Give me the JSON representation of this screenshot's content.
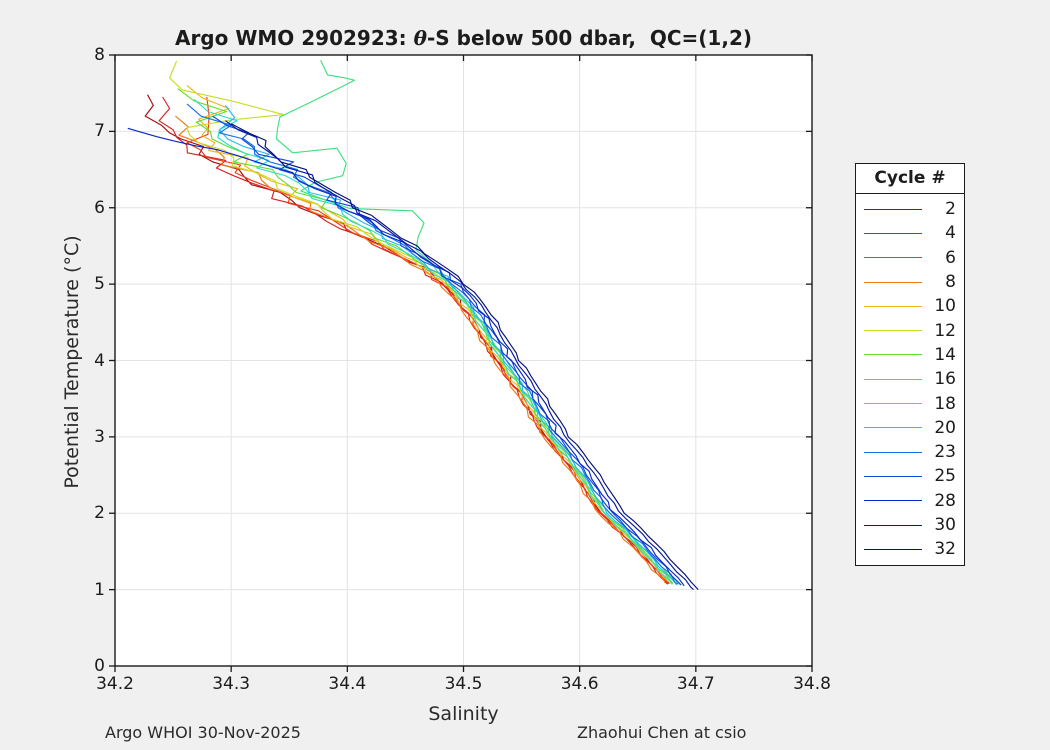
{
  "figure": {
    "bg": "#f0f0f0",
    "plot_bg": "#ffffff",
    "border_color": "#1a1a1a",
    "grid_color": "#e3e3e3",
    "text_color": "#1c1c1c"
  },
  "title": {
    "prefix": "Argo WMO 2902923: ",
    "theta": "θ",
    "suffix": "-S below 500 dbar,  QC=(1,2)"
  },
  "footer": {
    "left": "Argo WHOI 30-Nov-2025",
    "right": "Zhaohui Chen at csio"
  },
  "legend": {
    "title": "Cycle #"
  },
  "chart_data": {
    "type": "line",
    "title": "Argo WMO 2902923: θ-S below 500 dbar, QC=(1,2)",
    "xlabel": "Salinity",
    "ylabel": "Potential Temperature (°C)",
    "xlim": [
      34.2,
      34.8
    ],
    "ylim": [
      0,
      8
    ],
    "x_ticks": [
      "34.2",
      "34.3",
      "34.4",
      "34.5",
      "34.6",
      "34.7",
      "34.8"
    ],
    "y_ticks": [
      "0",
      "1",
      "2",
      "3",
      "4",
      "5",
      "6",
      "7",
      "8"
    ],
    "grid": true,
    "legend_position": "right-outside",
    "baseline": [
      [
        7.4,
        34.262
      ],
      [
        7.2,
        34.272
      ],
      [
        7.0,
        34.29
      ],
      [
        6.8,
        34.312
      ],
      [
        6.6,
        34.332
      ],
      [
        6.4,
        34.355
      ],
      [
        6.2,
        34.375
      ],
      [
        6.0,
        34.395
      ],
      [
        5.8,
        34.415
      ],
      [
        5.6,
        34.435
      ],
      [
        5.4,
        34.455
      ],
      [
        5.2,
        34.474
      ],
      [
        5.0,
        34.49
      ],
      [
        4.8,
        34.502
      ],
      [
        4.6,
        34.512
      ],
      [
        4.4,
        34.52
      ],
      [
        4.2,
        34.528
      ],
      [
        4.0,
        34.536
      ],
      [
        3.8,
        34.545
      ],
      [
        3.6,
        34.554
      ],
      [
        3.4,
        34.562
      ],
      [
        3.2,
        34.57
      ],
      [
        3.0,
        34.578
      ],
      [
        2.8,
        34.589
      ],
      [
        2.6,
        34.599
      ],
      [
        2.4,
        34.608
      ],
      [
        2.2,
        34.616
      ],
      [
        2.0,
        34.625
      ],
      [
        1.8,
        34.639
      ],
      [
        1.6,
        34.652
      ],
      [
        1.4,
        34.664
      ],
      [
        1.2,
        34.676
      ],
      [
        1.0,
        34.688
      ]
    ],
    "offset_knots": [
      6.4,
      5.2,
      2.0
    ],
    "jitter_amps": [
      [
        6.4,
        0.014
      ],
      [
        5.8,
        0.01
      ],
      [
        5.0,
        0.005
      ],
      [
        3.0,
        0.0028
      ],
      [
        -99,
        0.0018
      ]
    ],
    "series": [
      {
        "label": "2",
        "color": "#A80D0D",
        "join": 6.9,
        "end": 1.08,
        "off_top": -0.044,
        "off_mid": -0.007,
        "off_bot": -0.006,
        "head": [
          [
            34.228,
            7.48
          ],
          [
            34.233,
            7.34
          ],
          [
            34.226,
            7.2
          ],
          [
            34.24,
            7.08
          ],
          [
            34.247,
            6.98
          ]
        ]
      },
      {
        "label": "4",
        "color": "#D92020",
        "join": 6.92,
        "end": 1.07,
        "off_top": -0.048,
        "off_mid": -0.009,
        "off_bot": -0.008,
        "head": [
          [
            34.241,
            7.45
          ],
          [
            34.247,
            7.3
          ],
          [
            34.238,
            7.14
          ],
          [
            34.25,
            7.02
          ]
        ]
      },
      {
        "label": "6",
        "color": "#F03B16",
        "join": 6.76,
        "end": 1.08,
        "off_top": -0.04,
        "off_mid": -0.008,
        "off_bot": -0.007,
        "head": [
          [
            34.279,
            7.45
          ],
          [
            34.281,
            7.2
          ],
          [
            34.28,
            6.96
          ],
          [
            34.262,
            6.85
          ]
        ]
      },
      {
        "label": "8",
        "color": "#EF7A14",
        "join": 6.86,
        "end": 1.09,
        "off_top": -0.034,
        "off_mid": -0.01,
        "off_bot": -0.009,
        "head": [
          [
            34.252,
            7.2
          ],
          [
            34.263,
            7.06
          ],
          [
            34.255,
            6.95
          ]
        ]
      },
      {
        "label": "10",
        "color": "#EFB71A",
        "join": 6.95,
        "end": 1.08,
        "off_top": -0.024,
        "off_mid": -0.006,
        "off_bot": -0.005,
        "head": [
          [
            34.262,
            7.6
          ],
          [
            34.275,
            7.44
          ],
          [
            34.298,
            7.3
          ],
          [
            34.272,
            7.16
          ],
          [
            34.28,
            7.04
          ]
        ]
      },
      {
        "label": "12",
        "color": "#CADD23",
        "join": 6.95,
        "end": 1.07,
        "off_top": -0.028,
        "off_mid": -0.004,
        "off_bot": -0.004,
        "head": [
          [
            34.253,
            7.92
          ],
          [
            34.247,
            7.7
          ],
          [
            34.258,
            7.54
          ],
          [
            34.3,
            7.4
          ],
          [
            34.345,
            7.22
          ],
          [
            34.3,
            7.15
          ],
          [
            34.262,
            7.05
          ]
        ]
      },
      {
        "label": "14",
        "color": "#63DE2C",
        "join": 6.9,
        "end": 1.08,
        "off_top": -0.016,
        "off_mid": -0.002,
        "off_bot": -0.003,
        "head": [
          [
            34.254,
            7.56
          ],
          [
            34.268,
            7.4
          ],
          [
            34.296,
            7.26
          ],
          [
            34.27,
            7.12
          ],
          [
            34.282,
            7.0
          ]
        ]
      },
      {
        "label": "16",
        "color": "#3EDF7E",
        "points": [
          [
            34.377,
            7.93
          ],
          [
            34.383,
            7.74
          ],
          [
            34.398,
            7.7
          ],
          [
            34.406,
            7.67
          ],
          [
            34.4,
            7.62
          ],
          [
            34.368,
            7.38
          ],
          [
            34.342,
            7.19
          ],
          [
            34.34,
            7.04
          ],
          [
            34.339,
            6.9
          ],
          [
            34.353,
            6.72
          ],
          [
            34.391,
            6.78
          ],
          [
            34.399,
            6.58
          ],
          [
            34.396,
            6.42
          ],
          [
            34.372,
            6.33
          ],
          [
            34.36,
            6.22
          ],
          [
            34.381,
            6.1
          ],
          [
            34.402,
            5.99
          ],
          [
            34.456,
            5.96
          ],
          [
            34.466,
            5.8
          ],
          [
            34.461,
            5.62
          ],
          [
            34.459,
            5.45
          ],
          [
            34.472,
            5.28
          ],
          [
            34.48,
            5.12
          ],
          [
            34.491,
            4.98
          ],
          [
            34.5,
            4.8
          ],
          [
            34.511,
            4.6
          ],
          [
            34.519,
            4.41
          ],
          [
            34.527,
            4.2
          ],
          [
            34.537,
            4.0
          ],
          [
            34.544,
            3.81
          ],
          [
            34.555,
            3.6
          ],
          [
            34.56,
            3.4
          ],
          [
            34.571,
            3.19
          ],
          [
            34.577,
            3.0
          ],
          [
            34.59,
            2.79
          ],
          [
            34.597,
            2.6
          ],
          [
            34.608,
            2.4
          ],
          [
            34.614,
            2.2
          ],
          [
            34.626,
            2.0
          ],
          [
            34.64,
            1.8
          ],
          [
            34.651,
            1.6
          ],
          [
            34.665,
            1.4
          ],
          [
            34.676,
            1.2
          ],
          [
            34.687,
            1.06
          ]
        ]
      },
      {
        "label": "18",
        "color": "#2FDFC3",
        "join": 6.92,
        "end": 1.07,
        "off_top": -0.008,
        "off_mid": -0.003,
        "off_bot": -0.004,
        "head": [
          [
            34.268,
            7.42
          ],
          [
            34.28,
            7.26
          ],
          [
            34.305,
            7.14
          ],
          [
            34.29,
            7.02
          ]
        ]
      },
      {
        "label": "20",
        "color": "#27BBEC",
        "join": 6.9,
        "end": 1.06,
        "off_top": 0.0,
        "off_mid": 0.0,
        "off_bot": -0.001,
        "head": [
          [
            34.295,
            7.34
          ],
          [
            34.303,
            7.18
          ],
          [
            34.29,
            7.02
          ]
        ]
      },
      {
        "label": "23",
        "color": "#1970EA",
        "join": 6.9,
        "end": 1.07,
        "off_top": 0.004,
        "off_mid": 0.002,
        "off_bot": 0.001,
        "head": [
          [
            34.262,
            7.36
          ],
          [
            34.274,
            7.2
          ],
          [
            34.3,
            7.08
          ],
          [
            34.29,
            6.98
          ]
        ]
      },
      {
        "label": "25",
        "color": "#1149DB",
        "join": 6.9,
        "end": 1.06,
        "off_top": 0.008,
        "off_mid": 0.004,
        "off_bot": 0.003,
        "head": [
          [
            34.284,
            7.2
          ],
          [
            34.296,
            7.08
          ],
          [
            34.315,
            6.98
          ]
        ]
      },
      {
        "label": "28",
        "color": "#0A28C6",
        "join": 6.35,
        "end": 1.05,
        "off_top": 0.003,
        "off_mid": 0.006,
        "off_bot": 0.005,
        "head": [
          [
            34.211,
            7.04
          ],
          [
            34.222,
            6.99
          ],
          [
            34.236,
            6.93
          ],
          [
            34.252,
            6.87
          ],
          [
            34.27,
            6.81
          ],
          [
            34.288,
            6.76
          ],
          [
            34.306,
            6.68
          ],
          [
            34.322,
            6.6
          ],
          [
            34.338,
            6.52
          ],
          [
            34.353,
            6.46
          ]
        ]
      },
      {
        "label": "30",
        "color": "#0617A3",
        "join": 6.83,
        "end": 1.0,
        "off_top": 0.012,
        "off_mid": 0.009,
        "off_bot": 0.01,
        "smooth": 0.5,
        "head": [
          [
            34.295,
            7.14
          ],
          [
            34.306,
            7.02
          ],
          [
            34.322,
            6.92
          ]
        ]
      },
      {
        "label": "32",
        "color": "#051178",
        "join": 6.8,
        "end": 1.0,
        "off_top": 0.015,
        "off_mid": 0.012,
        "off_bot": 0.014,
        "smooth": 0.5,
        "head": [
          [
            34.3,
            7.1
          ],
          [
            34.315,
            6.98
          ],
          [
            34.33,
            6.88
          ]
        ]
      }
    ]
  }
}
